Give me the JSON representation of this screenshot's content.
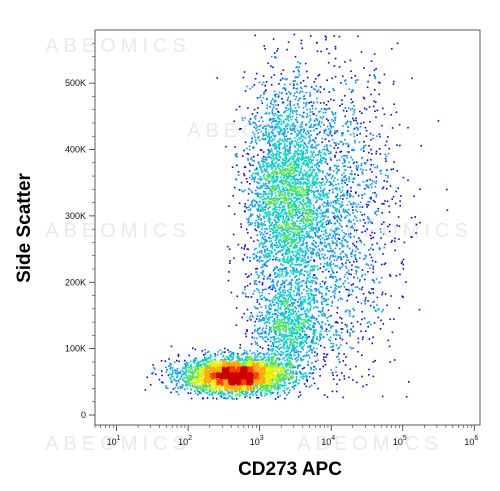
{
  "chart_data": {
    "type": "scatter",
    "title": "",
    "xlabel": "CD273 APC",
    "ylabel": "Side Scatter",
    "x_scale": "log",
    "xlim": [
      5,
      1200000
    ],
    "ylim": [
      -15000,
      580000
    ],
    "x_ticks": [
      {
        "value": 10,
        "base": "10",
        "exp": "1"
      },
      {
        "value": 100,
        "base": "10",
        "exp": "2"
      },
      {
        "value": 1000,
        "base": "10",
        "exp": "3"
      },
      {
        "value": 10000,
        "base": "10",
        "exp": "4"
      },
      {
        "value": 100000,
        "base": "10",
        "exp": "5"
      },
      {
        "value": 1000000,
        "base": "10",
        "exp": "6"
      }
    ],
    "y_ticks": [
      {
        "value": 0,
        "label": "0"
      },
      {
        "value": 100000,
        "label": "100K"
      },
      {
        "value": 200000,
        "label": "200K"
      },
      {
        "value": 300000,
        "label": "300K"
      },
      {
        "value": 400000,
        "label": "400K"
      },
      {
        "value": 500000,
        "label": "500K"
      }
    ],
    "populations": [
      {
        "x_center": 450,
        "y_center": 60000,
        "x_log_sd": 0.38,
        "y_sd": 14000,
        "weight": 0.38
      },
      {
        "x_center": 2200,
        "y_center": 330000,
        "x_log_sd": 0.28,
        "y_sd": 85000,
        "weight": 0.3
      },
      {
        "x_center": 10000,
        "y_center": 300000,
        "x_log_sd": 0.45,
        "y_sd": 120000,
        "weight": 0.22
      },
      {
        "x_center": 2500,
        "y_center": 130000,
        "x_log_sd": 0.25,
        "y_sd": 35000,
        "weight": 0.1
      }
    ],
    "density_colors": [
      "#0000ff",
      "#0096ff",
      "#00d2c8",
      "#50e650",
      "#e6f000",
      "#ffaa00",
      "#ff3c00",
      "#c80000"
    ],
    "watermark": "ABEOMICS"
  }
}
